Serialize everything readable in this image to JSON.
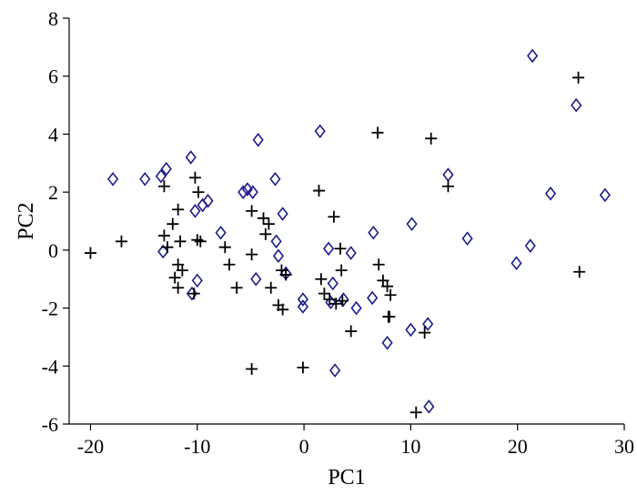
{
  "chart_data": {
    "type": "scatter",
    "xlabel": "PC1",
    "ylabel": "PC2",
    "xlim": [
      -22,
      30
    ],
    "ylim": [
      -6,
      8
    ],
    "xticks": [
      -20,
      -10,
      0,
      10,
      20,
      30
    ],
    "yticks": [
      -6,
      -4,
      -2,
      0,
      2,
      4,
      6,
      8
    ],
    "grid": false,
    "legend": "none",
    "series": [
      {
        "marker": "diamond",
        "color": "#1c1c8c",
        "points": [
          [
            -17.9,
            2.45
          ],
          [
            -14.9,
            2.45
          ],
          [
            -13.4,
            2.55
          ],
          [
            -12.9,
            2.8
          ],
          [
            -13.2,
            -0.05
          ],
          [
            -10.6,
            3.2
          ],
          [
            -10.2,
            1.35
          ],
          [
            -9.5,
            1.55
          ],
          [
            -9.0,
            1.7
          ],
          [
            -10.0,
            -1.05
          ],
          [
            -10.5,
            -1.5
          ],
          [
            -7.8,
            0.6
          ],
          [
            -5.7,
            2.0
          ],
          [
            -5.3,
            2.1
          ],
          [
            -4.8,
            2.0
          ],
          [
            -4.3,
            3.8
          ],
          [
            -4.5,
            -1.0
          ],
          [
            -2.7,
            2.45
          ],
          [
            -2.4,
            -0.2
          ],
          [
            -2.6,
            0.3
          ],
          [
            -2.0,
            1.25
          ],
          [
            -1.7,
            -0.8
          ],
          [
            -0.1,
            -1.7
          ],
          [
            -0.1,
            -1.95
          ],
          [
            1.5,
            4.1
          ],
          [
            2.3,
            0.05
          ],
          [
            2.5,
            -1.8
          ],
          [
            2.7,
            -1.15
          ],
          [
            2.9,
            -4.15
          ],
          [
            3.7,
            -1.7
          ],
          [
            4.4,
            -0.1
          ],
          [
            4.9,
            -2.0
          ],
          [
            6.5,
            0.6
          ],
          [
            6.4,
            -1.65
          ],
          [
            7.8,
            -3.2
          ],
          [
            10.1,
            0.9
          ],
          [
            10.0,
            -2.75
          ],
          [
            11.6,
            -2.55
          ],
          [
            11.7,
            -5.4
          ],
          [
            13.5,
            2.6
          ],
          [
            15.3,
            0.4
          ],
          [
            19.9,
            -0.45
          ],
          [
            21.2,
            0.15
          ],
          [
            21.4,
            6.7
          ],
          [
            23.1,
            1.95
          ],
          [
            25.5,
            5.0
          ],
          [
            28.2,
            1.9
          ]
        ]
      },
      {
        "marker": "plus",
        "color": "#000000",
        "points": [
          [
            -20.0,
            -0.1
          ],
          [
            -17.1,
            0.3
          ],
          [
            -13.1,
            2.2
          ],
          [
            -13.1,
            0.5
          ],
          [
            -12.8,
            0.1
          ],
          [
            -12.3,
            0.9
          ],
          [
            -11.8,
            1.4
          ],
          [
            -11.6,
            0.3
          ],
          [
            -11.8,
            -0.5
          ],
          [
            -12.1,
            -0.95
          ],
          [
            -11.4,
            -0.7
          ],
          [
            -11.8,
            -1.3
          ],
          [
            -10.2,
            2.5
          ],
          [
            -10.0,
            0.35
          ],
          [
            -9.7,
            0.3
          ],
          [
            -10.3,
            -1.5
          ],
          [
            -9.9,
            2.0
          ],
          [
            -7.4,
            0.1
          ],
          [
            -7.0,
            -0.5
          ],
          [
            -6.3,
            -1.3
          ],
          [
            -4.9,
            1.35
          ],
          [
            -4.9,
            -0.15
          ],
          [
            -3.8,
            1.1
          ],
          [
            -3.3,
            0.9
          ],
          [
            -3.6,
            0.55
          ],
          [
            -3.1,
            -1.3
          ],
          [
            -2.4,
            -1.9
          ],
          [
            -2.0,
            -2.05
          ],
          [
            -2.1,
            -0.7
          ],
          [
            -1.7,
            -0.85
          ],
          [
            -4.9,
            -4.1
          ],
          [
            -0.1,
            -4.05
          ],
          [
            1.4,
            2.05
          ],
          [
            1.6,
            -1.0
          ],
          [
            1.9,
            -1.5
          ],
          [
            2.4,
            -1.7
          ],
          [
            2.8,
            1.15
          ],
          [
            3.4,
            0.05
          ],
          [
            3.5,
            -0.7
          ],
          [
            3.0,
            -1.85
          ],
          [
            3.6,
            -1.75
          ],
          [
            4.4,
            -2.8
          ],
          [
            6.9,
            4.05
          ],
          [
            7.0,
            -0.5
          ],
          [
            7.4,
            -1.05
          ],
          [
            7.8,
            -1.25
          ],
          [
            7.9,
            -2.3
          ],
          [
            8.1,
            -1.55
          ],
          [
            8.0,
            -2.3
          ],
          [
            10.5,
            -5.6
          ],
          [
            11.3,
            -2.85
          ],
          [
            11.9,
            3.85
          ],
          [
            13.5,
            2.2
          ],
          [
            25.7,
            5.95
          ],
          [
            25.8,
            -0.75
          ]
        ]
      }
    ]
  }
}
